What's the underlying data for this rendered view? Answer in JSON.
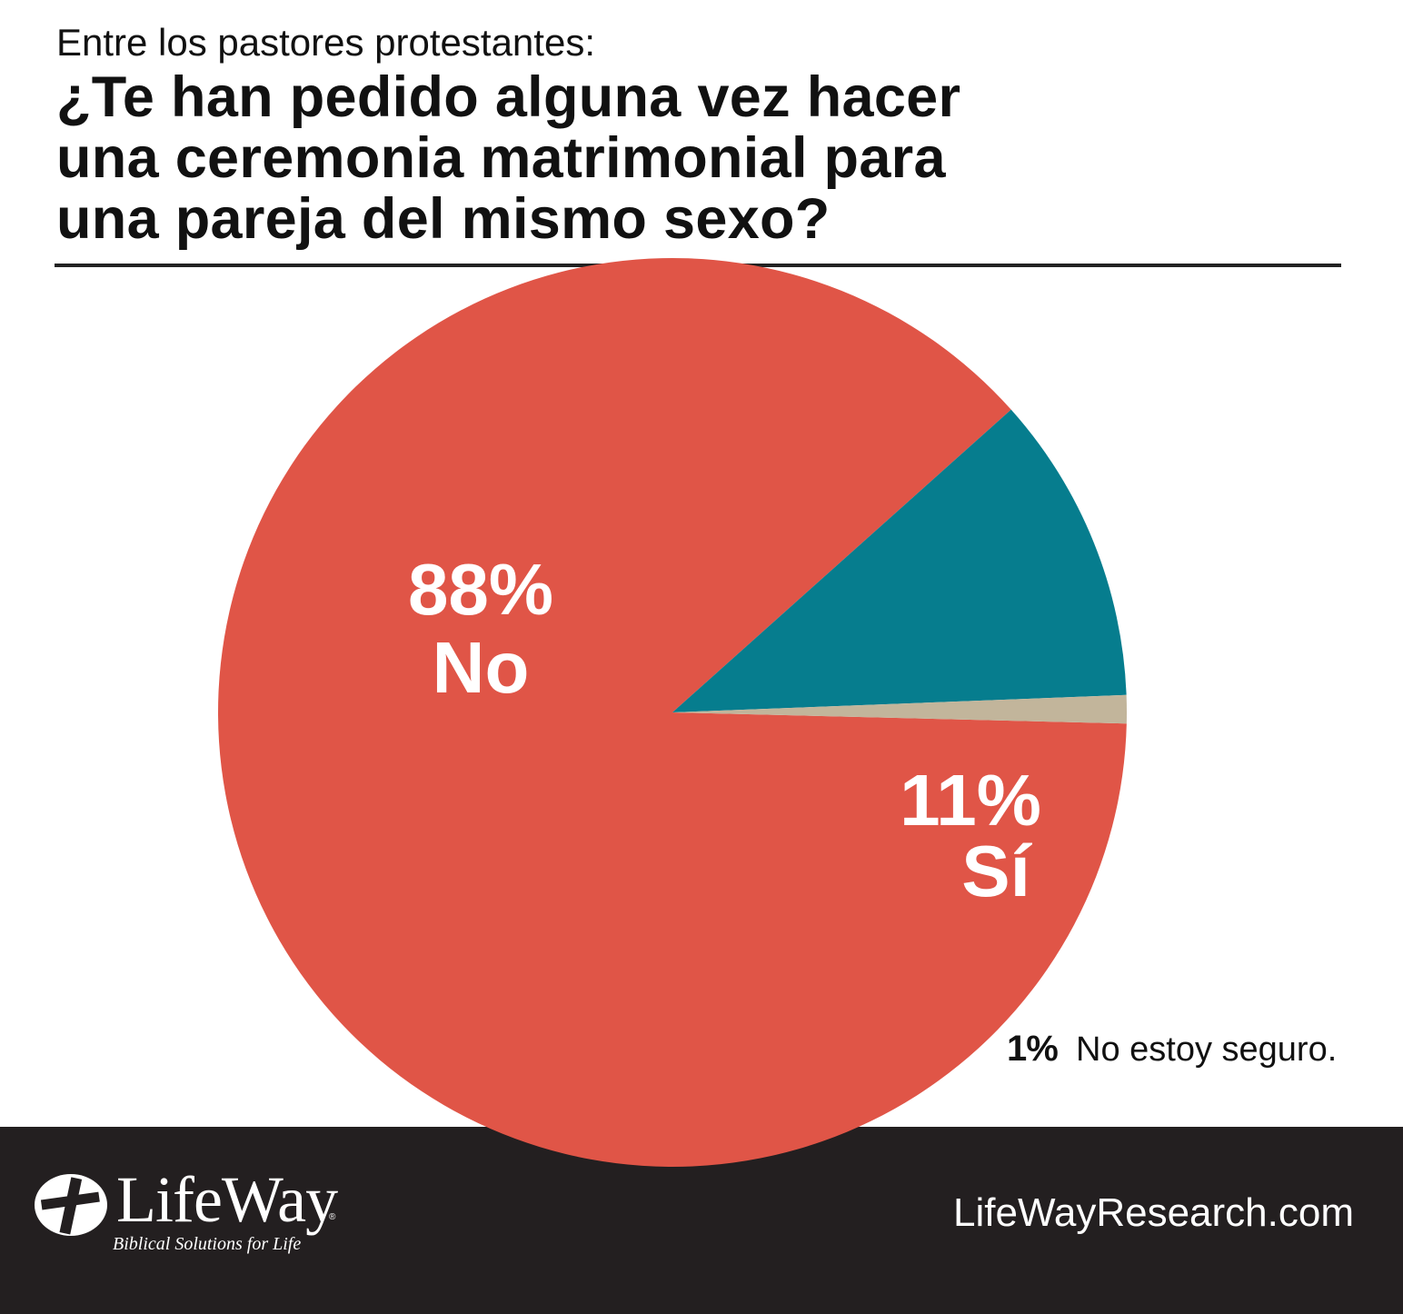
{
  "header": {
    "subtitle": "Entre los pastores protestantes:",
    "title_lines": [
      "¿Te han pedido alguna vez hacer",
      "una ceremonia matrimonial para",
      "una pareja del mismo sexo?"
    ]
  },
  "chart_data": {
    "type": "pie",
    "title": "¿Te han pedido alguna vez hacer una ceremonia matrimonial para una pareja del mismo sexo?",
    "subtitle": "Entre los pastores protestantes:",
    "slices": [
      {
        "label": "No",
        "value": 88,
        "pct_label": "88%",
        "color": "#e05547"
      },
      {
        "label": "Sí",
        "value": 11,
        "pct_label": "11%",
        "color": "#067d8e"
      },
      {
        "label": "No estoy seguro.",
        "value": 1,
        "pct_label": "1%",
        "color": "#c2b59b"
      }
    ]
  },
  "footer": {
    "url": "LifeWayResearch.com",
    "logo_word": "LifeWay",
    "logo_registered": "®",
    "logo_tagline": "Biblical Solutions for Life",
    "logo_icon": "lifeway-cross-icon",
    "background": "#231f20"
  }
}
